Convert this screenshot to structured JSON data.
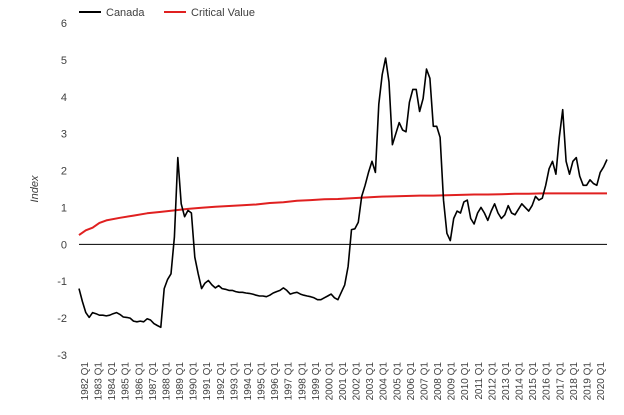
{
  "chart_data": {
    "type": "line",
    "ylabel": "Index",
    "ylim": [
      -3,
      6
    ],
    "yticks": [
      -3,
      -2,
      -1,
      0,
      1,
      2,
      3,
      4,
      5,
      6
    ],
    "xticklabels": [
      "1982 Q1",
      "1983 Q1",
      "1984 Q1",
      "1985 Q1",
      "1986 Q1",
      "1987 Q1",
      "1988 Q1",
      "1989 Q1",
      "1990 Q1",
      "1991 Q1",
      "1992 Q1",
      "1993 Q1",
      "1994 Q1",
      "1995 Q1",
      "1996 Q1",
      "1997 Q1",
      "1998 Q1",
      "1999 Q1",
      "2000 Q1",
      "2001 Q1",
      "2002 Q1",
      "2003 Q1",
      "2004 Q1",
      "2005 Q1",
      "2006 Q1",
      "2007 Q1",
      "2008 Q1",
      "2009 Q1",
      "2010 Q1",
      "2011 Q1",
      "2012 Q1",
      "2013 Q1",
      "2014 Q1",
      "2015 Q1",
      "2016 Q1",
      "2017 Q1",
      "2018 Q1",
      "2019 Q1",
      "2020 Q1"
    ],
    "legend_position": "top-left",
    "grid": false,
    "series": [
      {
        "name": "Canada",
        "color": "#000000",
        "points": [
          [
            1982.0,
            -1.2
          ],
          [
            1982.25,
            -1.55
          ],
          [
            1982.5,
            -1.85
          ],
          [
            1982.75,
            -1.98
          ],
          [
            1983.0,
            -1.85
          ],
          [
            1983.25,
            -1.88
          ],
          [
            1983.5,
            -1.92
          ],
          [
            1983.75,
            -1.92
          ],
          [
            1984.0,
            -1.94
          ],
          [
            1984.25,
            -1.92
          ],
          [
            1984.5,
            -1.88
          ],
          [
            1984.75,
            -1.85
          ],
          [
            1985.0,
            -1.9
          ],
          [
            1985.25,
            -1.97
          ],
          [
            1985.5,
            -1.98
          ],
          [
            1985.75,
            -2.0
          ],
          [
            1986.0,
            -2.08
          ],
          [
            1986.25,
            -2.1
          ],
          [
            1986.5,
            -2.08
          ],
          [
            1986.75,
            -2.1
          ],
          [
            1987.0,
            -2.02
          ],
          [
            1987.25,
            -2.05
          ],
          [
            1987.5,
            -2.15
          ],
          [
            1987.75,
            -2.2
          ],
          [
            1988.0,
            -2.25
          ],
          [
            1988.25,
            -1.2
          ],
          [
            1988.5,
            -0.95
          ],
          [
            1988.75,
            -0.8
          ],
          [
            1989.0,
            0.2
          ],
          [
            1989.25,
            2.35
          ],
          [
            1989.5,
            1.1
          ],
          [
            1989.75,
            0.75
          ],
          [
            1990.0,
            0.92
          ],
          [
            1990.25,
            0.85
          ],
          [
            1990.5,
            -0.35
          ],
          [
            1990.75,
            -0.8
          ],
          [
            1991.0,
            -1.2
          ],
          [
            1991.25,
            -1.05
          ],
          [
            1991.5,
            -0.98
          ],
          [
            1991.75,
            -1.1
          ],
          [
            1992.0,
            -1.18
          ],
          [
            1992.25,
            -1.12
          ],
          [
            1992.5,
            -1.2
          ],
          [
            1992.75,
            -1.22
          ],
          [
            1993.0,
            -1.25
          ],
          [
            1993.25,
            -1.25
          ],
          [
            1993.5,
            -1.28
          ],
          [
            1993.75,
            -1.3
          ],
          [
            1994.0,
            -1.3
          ],
          [
            1994.25,
            -1.32
          ],
          [
            1994.5,
            -1.33
          ],
          [
            1994.75,
            -1.35
          ],
          [
            1995.0,
            -1.38
          ],
          [
            1995.25,
            -1.4
          ],
          [
            1995.5,
            -1.4
          ],
          [
            1995.75,
            -1.42
          ],
          [
            1996.0,
            -1.38
          ],
          [
            1996.25,
            -1.32
          ],
          [
            1996.5,
            -1.28
          ],
          [
            1996.75,
            -1.25
          ],
          [
            1997.0,
            -1.18
          ],
          [
            1997.25,
            -1.25
          ],
          [
            1997.5,
            -1.35
          ],
          [
            1997.75,
            -1.32
          ],
          [
            1998.0,
            -1.3
          ],
          [
            1998.25,
            -1.35
          ],
          [
            1998.5,
            -1.38
          ],
          [
            1998.75,
            -1.4
          ],
          [
            1999.0,
            -1.42
          ],
          [
            1999.25,
            -1.45
          ],
          [
            1999.5,
            -1.5
          ],
          [
            1999.75,
            -1.5
          ],
          [
            2000.0,
            -1.45
          ],
          [
            2000.25,
            -1.4
          ],
          [
            2000.5,
            -1.35
          ],
          [
            2000.75,
            -1.45
          ],
          [
            2001.0,
            -1.5
          ],
          [
            2001.25,
            -1.3
          ],
          [
            2001.5,
            -1.1
          ],
          [
            2001.75,
            -0.6
          ],
          [
            2002.0,
            0.4
          ],
          [
            2002.25,
            0.42
          ],
          [
            2002.5,
            0.6
          ],
          [
            2002.75,
            1.3
          ],
          [
            2003.0,
            1.6
          ],
          [
            2003.25,
            1.95
          ],
          [
            2003.5,
            2.25
          ],
          [
            2003.75,
            1.95
          ],
          [
            2004.0,
            3.8
          ],
          [
            2004.25,
            4.6
          ],
          [
            2004.5,
            5.05
          ],
          [
            2004.75,
            4.4
          ],
          [
            2005.0,
            2.7
          ],
          [
            2005.25,
            3.0
          ],
          [
            2005.5,
            3.3
          ],
          [
            2005.75,
            3.1
          ],
          [
            2006.0,
            3.05
          ],
          [
            2006.25,
            3.85
          ],
          [
            2006.5,
            4.2
          ],
          [
            2006.75,
            4.2
          ],
          [
            2007.0,
            3.6
          ],
          [
            2007.25,
            3.95
          ],
          [
            2007.5,
            4.75
          ],
          [
            2007.75,
            4.5
          ],
          [
            2008.0,
            3.2
          ],
          [
            2008.25,
            3.2
          ],
          [
            2008.5,
            2.9
          ],
          [
            2008.75,
            1.2
          ],
          [
            2009.0,
            0.3
          ],
          [
            2009.25,
            0.1
          ],
          [
            2009.5,
            0.7
          ],
          [
            2009.75,
            0.9
          ],
          [
            2010.0,
            0.85
          ],
          [
            2010.25,
            1.15
          ],
          [
            2010.5,
            1.2
          ],
          [
            2010.75,
            0.7
          ],
          [
            2011.0,
            0.55
          ],
          [
            2011.25,
            0.85
          ],
          [
            2011.5,
            1.0
          ],
          [
            2011.75,
            0.85
          ],
          [
            2012.0,
            0.65
          ],
          [
            2012.25,
            0.9
          ],
          [
            2012.5,
            1.1
          ],
          [
            2012.75,
            0.85
          ],
          [
            2013.0,
            0.7
          ],
          [
            2013.25,
            0.8
          ],
          [
            2013.5,
            1.05
          ],
          [
            2013.75,
            0.85
          ],
          [
            2014.0,
            0.8
          ],
          [
            2014.25,
            0.95
          ],
          [
            2014.5,
            1.1
          ],
          [
            2014.75,
            1.0
          ],
          [
            2015.0,
            0.9
          ],
          [
            2015.25,
            1.05
          ],
          [
            2015.5,
            1.3
          ],
          [
            2015.75,
            1.2
          ],
          [
            2016.0,
            1.25
          ],
          [
            2016.25,
            1.6
          ],
          [
            2016.5,
            2.05
          ],
          [
            2016.75,
            2.25
          ],
          [
            2017.0,
            1.9
          ],
          [
            2017.25,
            2.9
          ],
          [
            2017.5,
            3.65
          ],
          [
            2017.75,
            2.25
          ],
          [
            2018.0,
            1.9
          ],
          [
            2018.25,
            2.25
          ],
          [
            2018.5,
            2.35
          ],
          [
            2018.75,
            1.85
          ],
          [
            2019.0,
            1.6
          ],
          [
            2019.25,
            1.6
          ],
          [
            2019.5,
            1.75
          ],
          [
            2019.75,
            1.65
          ],
          [
            2020.0,
            1.6
          ],
          [
            2020.25,
            1.95
          ],
          [
            2020.5,
            2.1
          ],
          [
            2020.75,
            2.3
          ]
        ]
      },
      {
        "name": "Critical Value",
        "color": "#e02020",
        "points": [
          [
            1982.0,
            0.25
          ],
          [
            1982.5,
            0.38
          ],
          [
            1983.0,
            0.45
          ],
          [
            1983.5,
            0.58
          ],
          [
            1984.0,
            0.65
          ],
          [
            1985.0,
            0.72
          ],
          [
            1986.0,
            0.78
          ],
          [
            1987.0,
            0.84
          ],
          [
            1988.0,
            0.88
          ],
          [
            1989.0,
            0.92
          ],
          [
            1990.0,
            0.96
          ],
          [
            1991.0,
            0.99
          ],
          [
            1992.0,
            1.02
          ],
          [
            1993.0,
            1.04
          ],
          [
            1994.0,
            1.06
          ],
          [
            1995.0,
            1.08
          ],
          [
            1996.0,
            1.12
          ],
          [
            1997.0,
            1.14
          ],
          [
            1998.0,
            1.18
          ],
          [
            1999.0,
            1.2
          ],
          [
            2000.0,
            1.22
          ],
          [
            2001.0,
            1.23
          ],
          [
            2002.0,
            1.25
          ],
          [
            2003.0,
            1.27
          ],
          [
            2004.0,
            1.29
          ],
          [
            2005.0,
            1.3
          ],
          [
            2006.0,
            1.31
          ],
          [
            2007.0,
            1.32
          ],
          [
            2008.0,
            1.32
          ],
          [
            2009.0,
            1.33
          ],
          [
            2010.0,
            1.34
          ],
          [
            2011.0,
            1.35
          ],
          [
            2012.0,
            1.35
          ],
          [
            2013.0,
            1.36
          ],
          [
            2014.0,
            1.37
          ],
          [
            2015.0,
            1.37
          ],
          [
            2016.0,
            1.38
          ],
          [
            2017.0,
            1.38
          ],
          [
            2018.0,
            1.38
          ],
          [
            2019.0,
            1.38
          ],
          [
            2020.0,
            1.38
          ],
          [
            2020.75,
            1.38
          ]
        ]
      }
    ]
  }
}
